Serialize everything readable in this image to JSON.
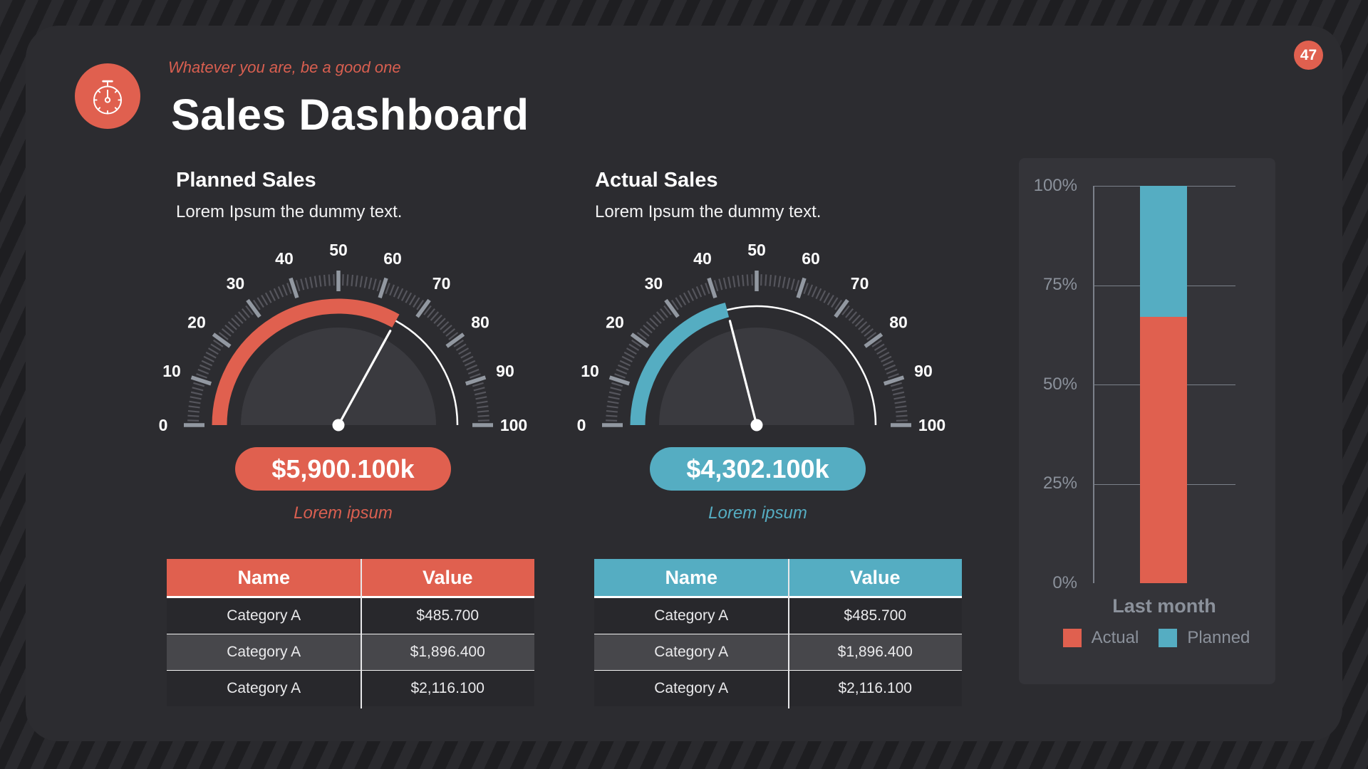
{
  "slide": {
    "tagline": "Whatever you are, be a good one",
    "title": "Sales Dashboard",
    "page_number": "47"
  },
  "colors": {
    "coral": "#e0604f",
    "teal": "#55adc2",
    "background": "#1e1e21",
    "panel": "#2c2c30",
    "chart_panel": "#343439",
    "muted_text": "#8b919b"
  },
  "icons": {
    "logo": "stopwatch-icon"
  },
  "planned": {
    "heading": "Planned Sales",
    "subtitle": "Lorem Ipsum the dummy text.",
    "value_pill": "$5,900.100k",
    "caption": "Lorem ipsum",
    "table": {
      "headers": [
        "Name",
        "Value"
      ],
      "rows": [
        [
          "Category A",
          "$485.700"
        ],
        [
          "Category A",
          "$1,896.400"
        ],
        [
          "Category A",
          "$2,116.100"
        ]
      ]
    }
  },
  "actual": {
    "heading": "Actual Sales",
    "subtitle": "Lorem Ipsum the dummy text.",
    "value_pill": "$4,302.100k",
    "caption": "Lorem ipsum",
    "table": {
      "headers": [
        "Name",
        "Value"
      ],
      "rows": [
        [
          "Category A",
          "$485.700"
        ],
        [
          "Category A",
          "$1,896.400"
        ],
        [
          "Category A",
          "$2,116.100"
        ]
      ]
    }
  },
  "chart_data": [
    {
      "type": "gauge",
      "title": "Planned Sales",
      "min": 0,
      "max": 100,
      "tick_step": 10,
      "value": 66,
      "value_label": "$5,900.100k",
      "color": "#e0604f"
    },
    {
      "type": "gauge",
      "title": "Actual Sales",
      "min": 0,
      "max": 100,
      "tick_step": 10,
      "value": 42,
      "value_label": "$4,302.100k",
      "color": "#55adc2"
    },
    {
      "type": "bar",
      "subtype": "stacked",
      "categories": [
        "Last month"
      ],
      "yticks": [
        "100%",
        "75%",
        "50%",
        "25%",
        "0%"
      ],
      "ylim": [
        0,
        100
      ],
      "grid": true,
      "legend_position": "bottom",
      "series": [
        {
          "name": "Actual",
          "value": 67,
          "color": "#e0604f"
        },
        {
          "name": "Planned",
          "value": 33,
          "color": "#55adc2"
        }
      ]
    }
  ]
}
